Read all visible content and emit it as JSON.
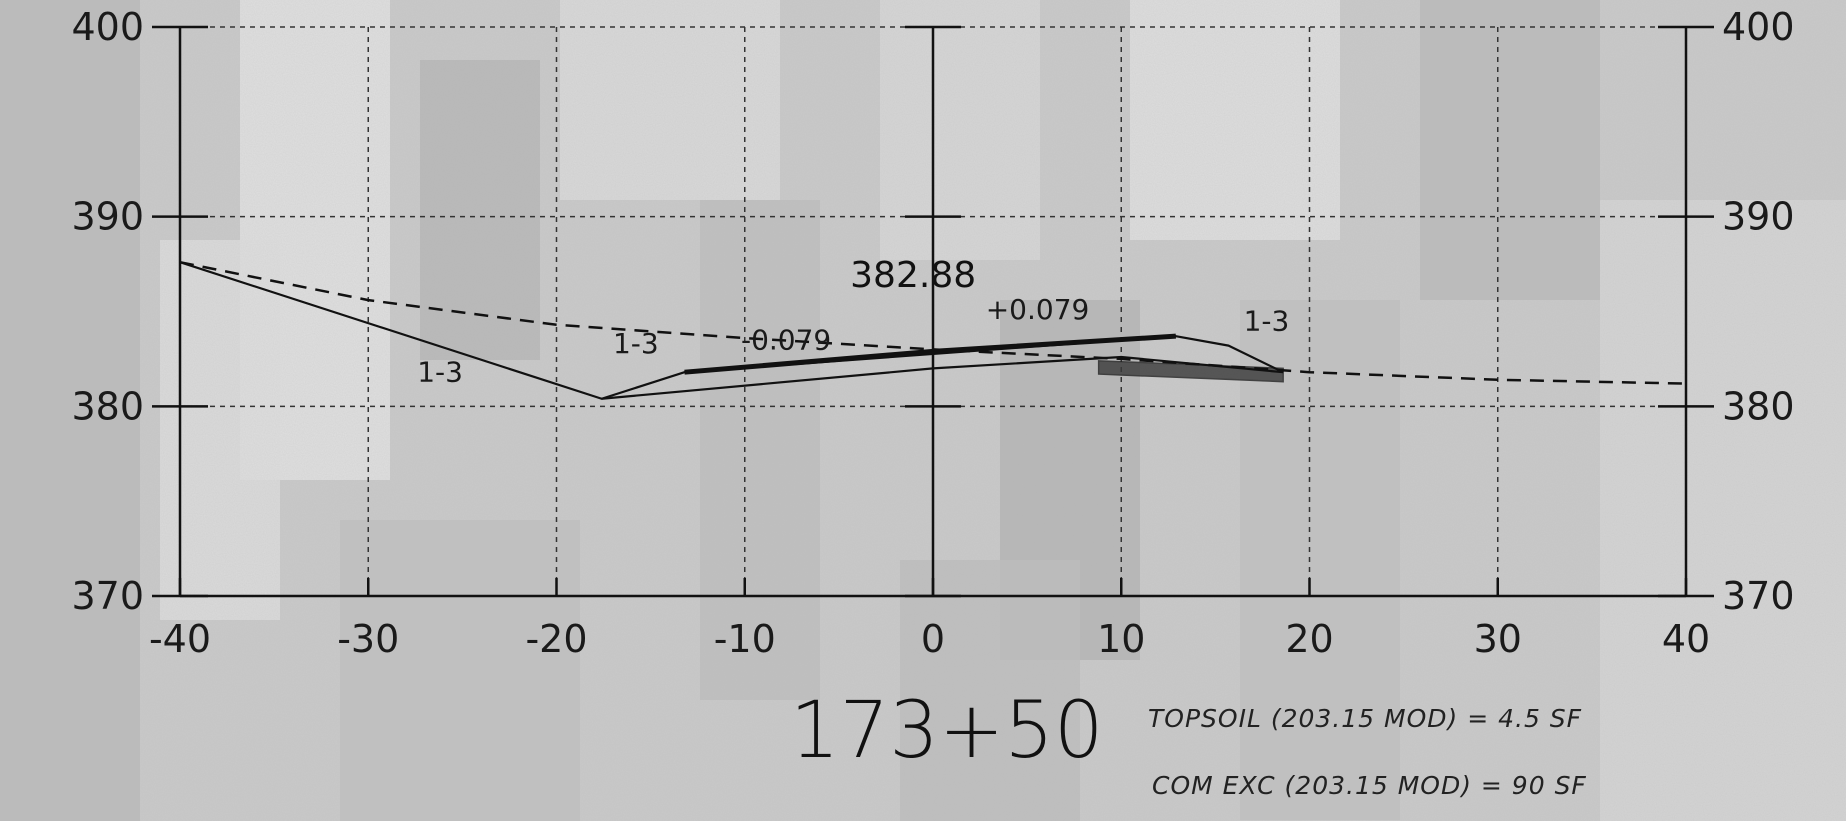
{
  "chart_data": {
    "type": "line",
    "title": "",
    "station_label": "173+50",
    "xlabel": "",
    "ylabel": "",
    "xlim": [
      -40,
      40
    ],
    "ylim": [
      370,
      400
    ],
    "x_ticks": [
      "-40",
      "-30",
      "-20",
      "-10",
      "0",
      "10",
      "20",
      "30",
      "40"
    ],
    "y_ticks": [
      "370",
      "380",
      "390",
      "400"
    ],
    "y_ticks_right": [
      "370",
      "380",
      "390",
      "400"
    ],
    "grid": true,
    "series": [
      {
        "style": "dashed",
        "x": [
          -40,
          -30,
          -20,
          -10,
          0,
          10,
          20,
          30,
          40
        ],
        "y": [
          387.6,
          385.6,
          384.3,
          383.6,
          383.0,
          382.5,
          381.8,
          381.4,
          381.2
        ]
      },
      {
        "style": "solid",
        "x": [
          -40,
          -17.6,
          -13.2,
          12.9,
          15.7,
          18.6
        ],
        "y": [
          387.6,
          380.4,
          381.8,
          383.7,
          383.2,
          381.8
        ]
      },
      {
        "style": "thick",
        "x": [
          -13.2,
          0,
          12.9
        ],
        "y": [
          381.8,
          382.9,
          383.7
        ]
      },
      {
        "style": "solid",
        "x": [
          -17.6,
          0,
          10,
          18.6
        ],
        "y": [
          380.4,
          382.0,
          382.6,
          381.8
        ]
      }
    ],
    "shaded_region": {
      "x": [
        8.8,
        18.6,
        18.6,
        8.8
      ],
      "y": [
        382.4,
        382.0,
        381.3,
        381.7
      ]
    },
    "annotations": [
      {
        "text": "382.88",
        "x": -4.4,
        "y": 386.3,
        "role": "elev"
      },
      {
        "text": "+0.079",
        "x": 2.8,
        "y": 384.6,
        "role": "ann"
      },
      {
        "text": "-0.079",
        "x": -10.2,
        "y": 383.0,
        "role": "ann"
      },
      {
        "text": "1-3",
        "x": -27.4,
        "y": 381.3,
        "role": "ann"
      },
      {
        "text": "1-3",
        "x": -17.0,
        "y": 382.8,
        "role": "ann"
      },
      {
        "text": "1-3",
        "x": 16.5,
        "y": 384.0,
        "role": "ann"
      }
    ],
    "notes": [
      "TOPSOIL (203.15 MOD) = 4.5 SF",
      "COM EXC (203.15 MOD) = 90 SF"
    ]
  }
}
